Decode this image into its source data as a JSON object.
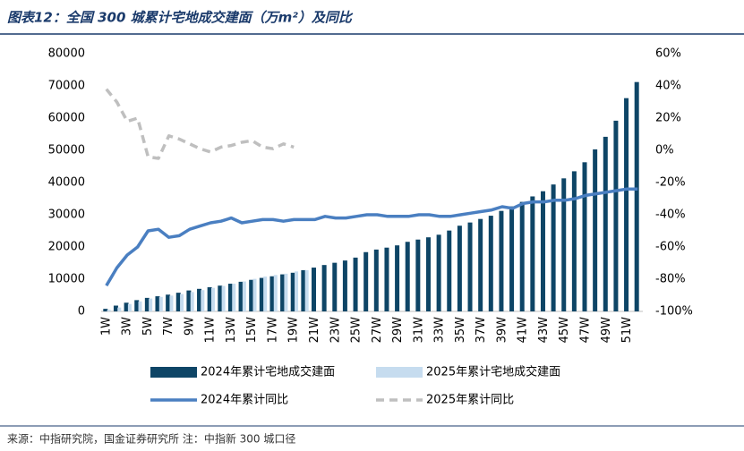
{
  "chart_data": {
    "type": "bar",
    "title": "图表12：全国 300 城累计宅地成交建面（万m²）及同比",
    "source": "来源：中指研究院，国金证券研究所 注：中指新 300 城口径",
    "categories": [
      "1W",
      null,
      "3W",
      null,
      "5W",
      null,
      "7W",
      null,
      "9W",
      null,
      "11W",
      null,
      "13W",
      null,
      "15W",
      null,
      "17W",
      null,
      "19W",
      null,
      "21W",
      null,
      "23W",
      null,
      "25W",
      null,
      "27W",
      null,
      "29W",
      null,
      "31W",
      null,
      "33W",
      null,
      "35W",
      null,
      "37W",
      null,
      "39W",
      null,
      "41W",
      null,
      "43W",
      null,
      "45W",
      null,
      "47W",
      null,
      "49W",
      null,
      "51W",
      null
    ],
    "series": [
      {
        "name": "2024年累计宅地成交建面",
        "type": "bar",
        "color": "#0e4566",
        "values": [
          800,
          1800,
          2700,
          3500,
          4200,
          4700,
          5200,
          5800,
          6500,
          7000,
          7500,
          8000,
          8600,
          9200,
          9800,
          10400,
          10900,
          11500,
          12000,
          12800,
          13600,
          14400,
          15100,
          15800,
          16700,
          18400,
          19200,
          19800,
          20500,
          21600,
          22300,
          23000,
          23800,
          25100,
          26600,
          27600,
          28700,
          29700,
          31200,
          32600,
          34000,
          35700,
          37300,
          39400,
          41300,
          43500,
          46300,
          50300,
          54200,
          59200,
          66200,
          71200
        ]
      },
      {
        "name": "2025年累计宅地成交建面",
        "type": "bar",
        "color": "#c6dcef",
        "values": [
          500,
          1200,
          2300,
          3100,
          4000,
          4500,
          4900,
          5400,
          6000,
          6600,
          7300,
          7900,
          8600,
          9300,
          10100,
          10800,
          11300,
          11700,
          12400,
          12800,
          null,
          null,
          null,
          null,
          null,
          null,
          null,
          null,
          null,
          null,
          null,
          null,
          null,
          null,
          null,
          null,
          null,
          null,
          null,
          null,
          null,
          null,
          null,
          null,
          null,
          null,
          null,
          null,
          null,
          null,
          null,
          null
        ]
      },
      {
        "name": "2024年累计同比",
        "type": "line",
        "axis": "y2",
        "color": "#4a7fc1",
        "values": [
          -84,
          -73,
          -65,
          -60,
          -50,
          -49,
          -54,
          -53,
          -49,
          -47,
          -45,
          -44,
          -42,
          -45,
          -44,
          -43,
          -43,
          -44,
          -43,
          -43,
          -43,
          -41,
          -42,
          -42,
          -41,
          -40,
          -40,
          -41,
          -41,
          -41,
          -40,
          -40,
          -41,
          -41,
          -40,
          -39,
          -38,
          -37,
          -35,
          -36,
          -33,
          -32,
          -32,
          -31,
          -31,
          -30,
          -28,
          -27,
          -26,
          -25,
          -24,
          -24
        ]
      },
      {
        "name": "2025年累计同比",
        "type": "line",
        "axis": "y2",
        "dashed": true,
        "color": "#bfbfbf",
        "values": [
          38,
          30,
          18,
          20,
          -4,
          -5,
          9,
          7,
          4,
          1,
          -1,
          2,
          3,
          5,
          6,
          2,
          1,
          4,
          2,
          null,
          null,
          null,
          null,
          null,
          null,
          null,
          null,
          null,
          null,
          null,
          null,
          null,
          null,
          null,
          null,
          null,
          null,
          null,
          null,
          null,
          null,
          null,
          null,
          null,
          null,
          null,
          null,
          null,
          null,
          null,
          null,
          null
        ]
      }
    ],
    "ylim": [
      0,
      80000
    ],
    "yticks": [
      0,
      10000,
      20000,
      30000,
      40000,
      50000,
      60000,
      70000,
      80000
    ],
    "y2lim": [
      -100,
      60
    ],
    "y2ticks": [
      {
        "value": -100,
        "label": "-100%"
      },
      {
        "value": -80,
        "label": "-80%"
      },
      {
        "value": -60,
        "label": "-60%"
      },
      {
        "value": -40,
        "label": "-40%"
      },
      {
        "value": -20,
        "label": "-20%"
      },
      {
        "value": 0,
        "label": "0%"
      },
      {
        "value": 20,
        "label": "20%"
      },
      {
        "value": 40,
        "label": "40%"
      },
      {
        "value": 60,
        "label": "60%"
      }
    ],
    "legend": "bottom"
  }
}
